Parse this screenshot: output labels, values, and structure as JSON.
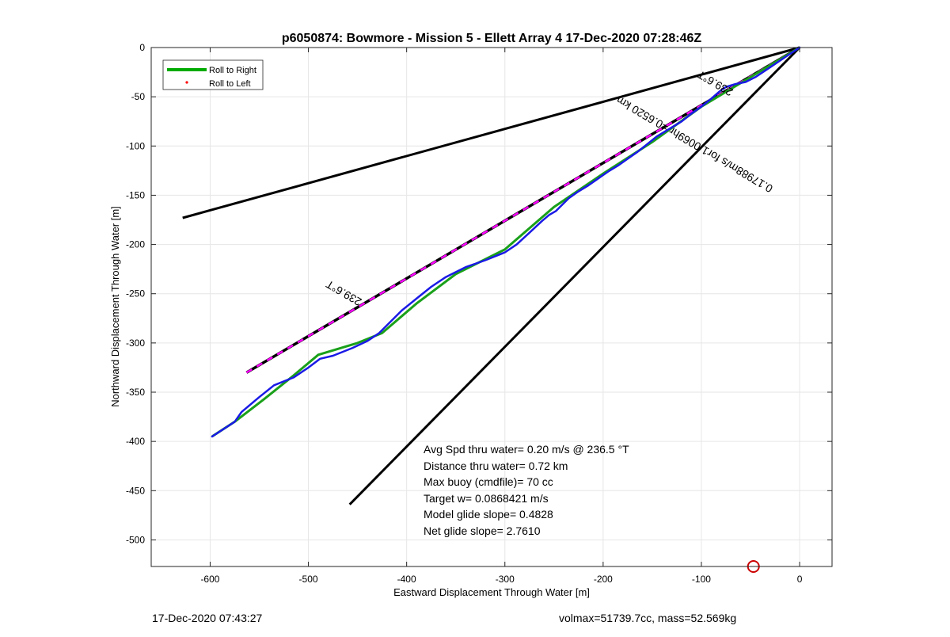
{
  "chart_data": {
    "type": "line",
    "title": "p6050874: Bowmore - Mission 5 - Ellett Array 4 17-Dec-2020 07:28:46Z",
    "xlabel": "Eastward Displacement Through Water [m]",
    "ylabel": "Northward Displacement Through Water [m]",
    "xlim": [
      -660,
      33
    ],
    "ylim": [
      -527,
      0
    ],
    "x_ticks": [
      -600,
      -500,
      -400,
      -300,
      -200,
      -100,
      0
    ],
    "y_ticks": [
      0,
      -50,
      -100,
      -150,
      -200,
      -250,
      -300,
      -350,
      -400,
      -450,
      -500
    ],
    "grid": true,
    "legend": {
      "placement": "top-left",
      "entries": [
        {
          "label": "Roll to Right",
          "color": "#00aa00",
          "style": "line"
        },
        {
          "label": "Roll to Left",
          "color": "#ff0000",
          "style": "dot"
        }
      ]
    },
    "series": [
      {
        "name": "Roll to Right",
        "color": "#1aa01a",
        "x": [
          -598,
          -575,
          -545,
          -515,
          -490,
          -450,
          -425,
          -390,
          -350,
          -300,
          -250,
          -200,
          -150,
          -100,
          -50,
          0
        ],
        "y": [
          -395,
          -380,
          -357,
          -333,
          -312,
          -300,
          -290,
          -260,
          -230,
          -205,
          -162,
          -128,
          -96,
          -60,
          -30,
          0
        ]
      },
      {
        "color": "#1a1ae6",
        "x": [
          -598,
          -575,
          -568,
          -550,
          -535,
          -515,
          -500,
          -488,
          -475,
          -455,
          -440,
          -428,
          -418,
          -405,
          -390,
          -375,
          -360,
          -340,
          -320,
          -300,
          -288,
          -275,
          -262,
          -255,
          -248,
          -242,
          -235,
          -225,
          -215,
          -205,
          -195,
          -185,
          -175,
          -165,
          -155,
          -145,
          -135,
          -120,
          -110,
          -100,
          -90,
          -82,
          -75,
          -65,
          -55,
          -45,
          -30,
          -15,
          0
        ],
        "y": [
          -395,
          -380,
          -370,
          -355,
          -343,
          -335,
          -325,
          -316,
          -313,
          -305,
          -298,
          -290,
          -280,
          -267,
          -255,
          -243,
          -233,
          -223,
          -216,
          -208,
          -200,
          -188,
          -176,
          -170,
          -166,
          -160,
          -153,
          -146,
          -140,
          -133,
          -126,
          -120,
          -113,
          -106,
          -98,
          -90,
          -84,
          -75,
          -67,
          -60,
          -52,
          -45,
          -40,
          -37,
          -35,
          -30,
          -20,
          -10,
          0
        ]
      },
      {
        "color": "#000000",
        "x": [
          -628,
          0
        ],
        "y": [
          -173,
          0
        ]
      },
      {
        "color": "#000000",
        "x": [
          -458,
          0
        ],
        "y": [
          -464,
          0
        ]
      },
      {
        "color": "#000000",
        "dash_color": "#ff00ff",
        "x": [
          -563,
          0
        ],
        "y": [
          -330,
          0
        ]
      }
    ],
    "annotations": [
      {
        "text": "239.6°T",
        "x": -462,
        "y": -246,
        "rotate": 210.4
      },
      {
        "text": "239.6°T",
        "x": -84,
        "y": -33,
        "rotate": 210.4
      },
      {
        "text": "0.17988m/s for1.0069hr =0.6520 km",
        "x": -105,
        "y": -95,
        "rotate": 210.4
      }
    ],
    "stats_block": [
      "Avg Spd thru water=  0.20 m/s @ 236.5 °T",
      "Distance thru water=  0.72 km",
      "Max buoy (cmdfile)= 70 cc",
      "Target w= 0.0868421 m/s",
      "Model glide slope= 0.4828",
      "Net glide slope= 2.7610"
    ],
    "marker": {
      "type": "circle",
      "color": "#cc0000",
      "x": -47,
      "y": -527
    }
  },
  "footer": {
    "timestamp": "17-Dec-2020 07:43:27",
    "vehicle_info": "volmax=51739.7cc, mass=52.569kg"
  }
}
